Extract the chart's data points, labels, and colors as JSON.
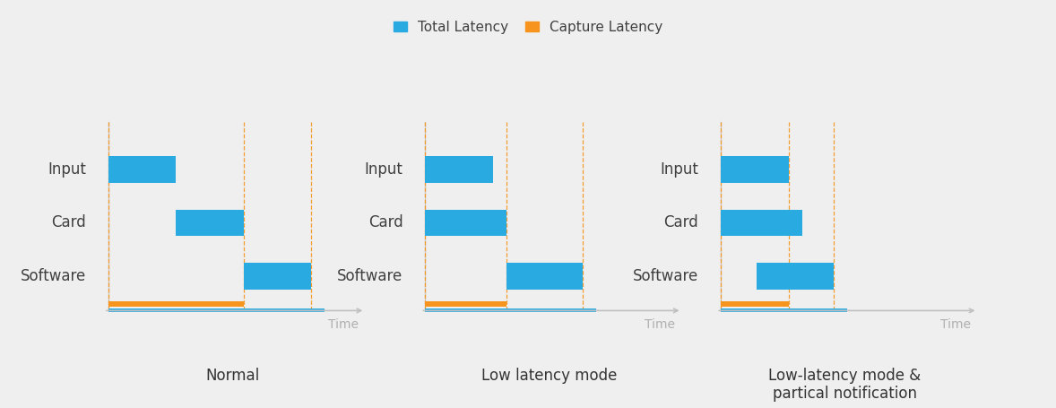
{
  "background_color": "#efefef",
  "legend": {
    "total_latency_label": "Total Latency",
    "capture_latency_label": "Capture Latency",
    "total_latency_color": "#29ABE2",
    "capture_latency_color": "#F7941D"
  },
  "subplots": [
    {
      "title": "Normal",
      "rows": [
        "Input",
        "Card",
        "Software"
      ],
      "bars": [
        {
          "row": 2,
          "xstart": 0.0,
          "xend": 1.5
        },
        {
          "row": 1,
          "xstart": 1.5,
          "xend": 3.0
        },
        {
          "row": 0,
          "xstart": 3.0,
          "xend": 4.5
        }
      ],
      "capture_bar": {
        "xstart": 0.0,
        "xend": 3.0
      },
      "total_bar_xend": 4.8,
      "dashed_lines": [
        0.0,
        3.0,
        4.5
      ],
      "xlim": [
        -0.3,
        5.8
      ],
      "ylim": [
        -1.1,
        3.5
      ]
    },
    {
      "title": "Low latency mode",
      "rows": [
        "Input",
        "Card",
        "Software"
      ],
      "bars": [
        {
          "row": 2,
          "xstart": 0.0,
          "xend": 1.5
        },
        {
          "row": 1,
          "xstart": 0.0,
          "xend": 1.8
        },
        {
          "row": 0,
          "xstart": 1.8,
          "xend": 3.5
        }
      ],
      "capture_bar": {
        "xstart": 0.0,
        "xend": 1.8
      },
      "total_bar_xend": 3.8,
      "dashed_lines": [
        0.0,
        1.8,
        3.5
      ],
      "xlim": [
        -0.3,
        5.8
      ],
      "ylim": [
        -1.1,
        3.5
      ]
    },
    {
      "title": "Low-latency mode &\npartical notification",
      "rows": [
        "Input",
        "Card",
        "Software"
      ],
      "bars": [
        {
          "row": 2,
          "xstart": 0.0,
          "xend": 1.5
        },
        {
          "row": 1,
          "xstart": 0.0,
          "xend": 1.8
        },
        {
          "row": 0,
          "xstart": 0.8,
          "xend": 2.5
        }
      ],
      "capture_bar": {
        "xstart": 0.0,
        "xend": 1.5
      },
      "total_bar_xend": 2.8,
      "dashed_lines": [
        0.0,
        1.5,
        2.5
      ],
      "xlim": [
        -0.3,
        5.8
      ],
      "ylim": [
        -1.1,
        3.5
      ]
    }
  ],
  "bar_height": 0.5,
  "bar_color": "#29ABE2",
  "capture_color": "#F7941D",
  "dashed_color": "#F7941D",
  "axis_line_color": "#29ABE2",
  "axis_arrow_color": "#c0c0c0",
  "time_label_color": "#b0b0b0",
  "row_label_color": "#404040",
  "title_color": "#333333",
  "title_fontsize": 12,
  "row_label_fontsize": 12,
  "time_fontsize": 10
}
